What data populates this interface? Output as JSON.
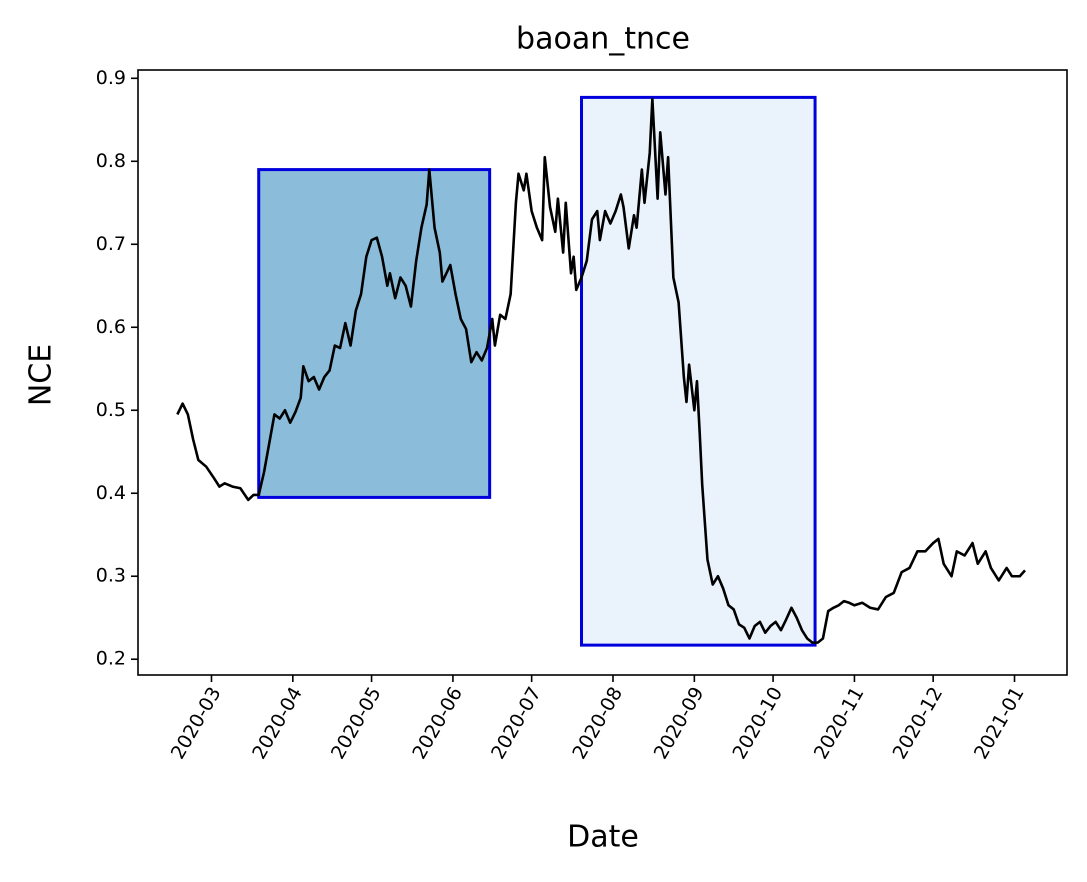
{
  "chart_data": {
    "type": "line",
    "title": "baoan_tnce",
    "x_label": "Date",
    "y_label": "NCE",
    "x": [
      "2020-02-17",
      "2020-02-19",
      "2020-02-21",
      "2020-02-23",
      "2020-02-25",
      "2020-02-28",
      "2020-03-02",
      "2020-03-04",
      "2020-03-06",
      "2020-03-09",
      "2020-03-12",
      "2020-03-15",
      "2020-03-17",
      "2020-03-19",
      "2020-03-21",
      "2020-03-23",
      "2020-03-25",
      "2020-03-27",
      "2020-03-29",
      "2020-03-31",
      "2020-04-02",
      "2020-04-04",
      "2020-04-05",
      "2020-04-07",
      "2020-04-09",
      "2020-04-11",
      "2020-04-13",
      "2020-04-15",
      "2020-04-17",
      "2020-04-19",
      "2020-04-21",
      "2020-04-23",
      "2020-04-25",
      "2020-04-27",
      "2020-04-29",
      "2020-05-01",
      "2020-05-03",
      "2020-05-05",
      "2020-05-07",
      "2020-05-08",
      "2020-05-10",
      "2020-05-12",
      "2020-05-14",
      "2020-05-16",
      "2020-05-18",
      "2020-05-20",
      "2020-05-22",
      "2020-05-23",
      "2020-05-25",
      "2020-05-27",
      "2020-05-28",
      "2020-05-31",
      "2020-06-02",
      "2020-06-04",
      "2020-06-06",
      "2020-06-08",
      "2020-06-10",
      "2020-06-12",
      "2020-06-14",
      "2020-06-16",
      "2020-06-17",
      "2020-06-19",
      "2020-06-21",
      "2020-06-23",
      "2020-06-25",
      "2020-06-26",
      "2020-06-28",
      "2020-06-29",
      "2020-07-01",
      "2020-07-03",
      "2020-07-05",
      "2020-07-06",
      "2020-07-08",
      "2020-07-10",
      "2020-07-11",
      "2020-07-13",
      "2020-07-14",
      "2020-07-16",
      "2020-07-17",
      "2020-07-18",
      "2020-07-20",
      "2020-07-22",
      "2020-07-24",
      "2020-07-26",
      "2020-07-27",
      "2020-07-29",
      "2020-07-31",
      "2020-08-02",
      "2020-08-04",
      "2020-08-05",
      "2020-08-07",
      "2020-08-09",
      "2020-08-10",
      "2020-08-12",
      "2020-08-13",
      "2020-08-15",
      "2020-08-16",
      "2020-08-18",
      "2020-08-19",
      "2020-08-21",
      "2020-08-22",
      "2020-08-24",
      "2020-08-26",
      "2020-08-28",
      "2020-08-29",
      "2020-08-30",
      "2020-09-01",
      "2020-09-02",
      "2020-09-03",
      "2020-09-04",
      "2020-09-06",
      "2020-09-08",
      "2020-09-10",
      "2020-09-12",
      "2020-09-14",
      "2020-09-16",
      "2020-09-18",
      "2020-09-20",
      "2020-09-22",
      "2020-09-24",
      "2020-09-26",
      "2020-09-28",
      "2020-09-30",
      "2020-10-02",
      "2020-10-04",
      "2020-10-06",
      "2020-10-08",
      "2020-10-10",
      "2020-10-12",
      "2020-10-14",
      "2020-10-16",
      "2020-10-18",
      "2020-10-20",
      "2020-10-22",
      "2020-10-24",
      "2020-10-26",
      "2020-10-28",
      "2020-10-30",
      "2020-11-01",
      "2020-11-04",
      "2020-11-07",
      "2020-11-10",
      "2020-11-13",
      "2020-11-16",
      "2020-11-19",
      "2020-11-22",
      "2020-11-25",
      "2020-11-28",
      "2020-12-01",
      "2020-12-03",
      "2020-12-05",
      "2020-12-08",
      "2020-12-10",
      "2020-12-13",
      "2020-12-16",
      "2020-12-18",
      "2020-12-21",
      "2020-12-23",
      "2020-12-26",
      "2020-12-29",
      "2020-12-31",
      "2021-01-03",
      "2021-01-05"
    ],
    "series": [
      {
        "color": "#000000",
        "values": [
          0.495,
          0.508,
          0.495,
          0.465,
          0.44,
          0.432,
          0.418,
          0.408,
          0.412,
          0.408,
          0.406,
          0.392,
          0.398,
          0.398,
          0.425,
          0.46,
          0.495,
          0.49,
          0.5,
          0.485,
          0.498,
          0.515,
          0.553,
          0.535,
          0.54,
          0.525,
          0.54,
          0.548,
          0.578,
          0.575,
          0.605,
          0.578,
          0.62,
          0.64,
          0.685,
          0.705,
          0.708,
          0.685,
          0.65,
          0.665,
          0.635,
          0.66,
          0.65,
          0.625,
          0.68,
          0.72,
          0.748,
          0.79,
          0.72,
          0.69,
          0.655,
          0.675,
          0.64,
          0.61,
          0.598,
          0.558,
          0.57,
          0.56,
          0.575,
          0.61,
          0.578,
          0.615,
          0.61,
          0.64,
          0.75,
          0.785,
          0.765,
          0.785,
          0.74,
          0.72,
          0.705,
          0.805,
          0.745,
          0.715,
          0.755,
          0.69,
          0.75,
          0.665,
          0.685,
          0.645,
          0.66,
          0.68,
          0.73,
          0.74,
          0.705,
          0.74,
          0.725,
          0.74,
          0.76,
          0.745,
          0.695,
          0.735,
          0.72,
          0.79,
          0.75,
          0.81,
          0.875,
          0.755,
          0.835,
          0.76,
          0.805,
          0.66,
          0.63,
          0.54,
          0.51,
          0.555,
          0.5,
          0.535,
          0.475,
          0.41,
          0.32,
          0.29,
          0.3,
          0.285,
          0.265,
          0.26,
          0.242,
          0.238,
          0.225,
          0.24,
          0.245,
          0.232,
          0.24,
          0.245,
          0.235,
          0.248,
          0.262,
          0.25,
          0.235,
          0.225,
          0.22,
          0.22,
          0.225,
          0.258,
          0.262,
          0.265,
          0.27,
          0.268,
          0.265,
          0.268,
          0.262,
          0.26,
          0.275,
          0.28,
          0.305,
          0.31,
          0.33,
          0.33,
          0.34,
          0.345,
          0.315,
          0.3,
          0.33,
          0.325,
          0.34,
          0.315,
          0.33,
          0.31,
          0.295,
          0.31,
          0.3,
          0.3,
          0.307
        ]
      }
    ],
    "highlights": [
      {
        "x": [
          "2020-03-19",
          "2020-06-15"
        ],
        "y": [
          0.395,
          0.79
        ],
        "color": "#8bbddb",
        "edgecolor": "#0000dd"
      },
      {
        "x": [
          "2020-07-20",
          "2020-10-17"
        ],
        "y": [
          0.217,
          0.877
        ],
        "color": "#eaf2fb",
        "edgecolor": "#0000dd"
      }
    ],
    "xlim": [
      "2020-02-02",
      "2021-01-21"
    ],
    "ylim": [
      0.181,
      0.91
    ],
    "xticks": [
      {
        "value": "2020-03-01",
        "label": "2020-03"
      },
      {
        "value": "2020-04-01",
        "label": "2020-04"
      },
      {
        "value": "2020-05-01",
        "label": "2020-05"
      },
      {
        "value": "2020-06-01",
        "label": "2020-06"
      },
      {
        "value": "2020-07-01",
        "label": "2020-07"
      },
      {
        "value": "2020-08-01",
        "label": "2020-08"
      },
      {
        "value": "2020-09-01",
        "label": "2020-09"
      },
      {
        "value": "2020-10-01",
        "label": "2020-10"
      },
      {
        "value": "2020-11-01",
        "label": "2020-11"
      },
      {
        "value": "2020-12-01",
        "label": "2020-12"
      },
      {
        "value": "2021-01-01",
        "label": "2021-01"
      }
    ],
    "yticks": [
      0.2,
      0.3,
      0.4,
      0.5,
      0.6,
      0.7,
      0.8,
      0.9
    ]
  }
}
